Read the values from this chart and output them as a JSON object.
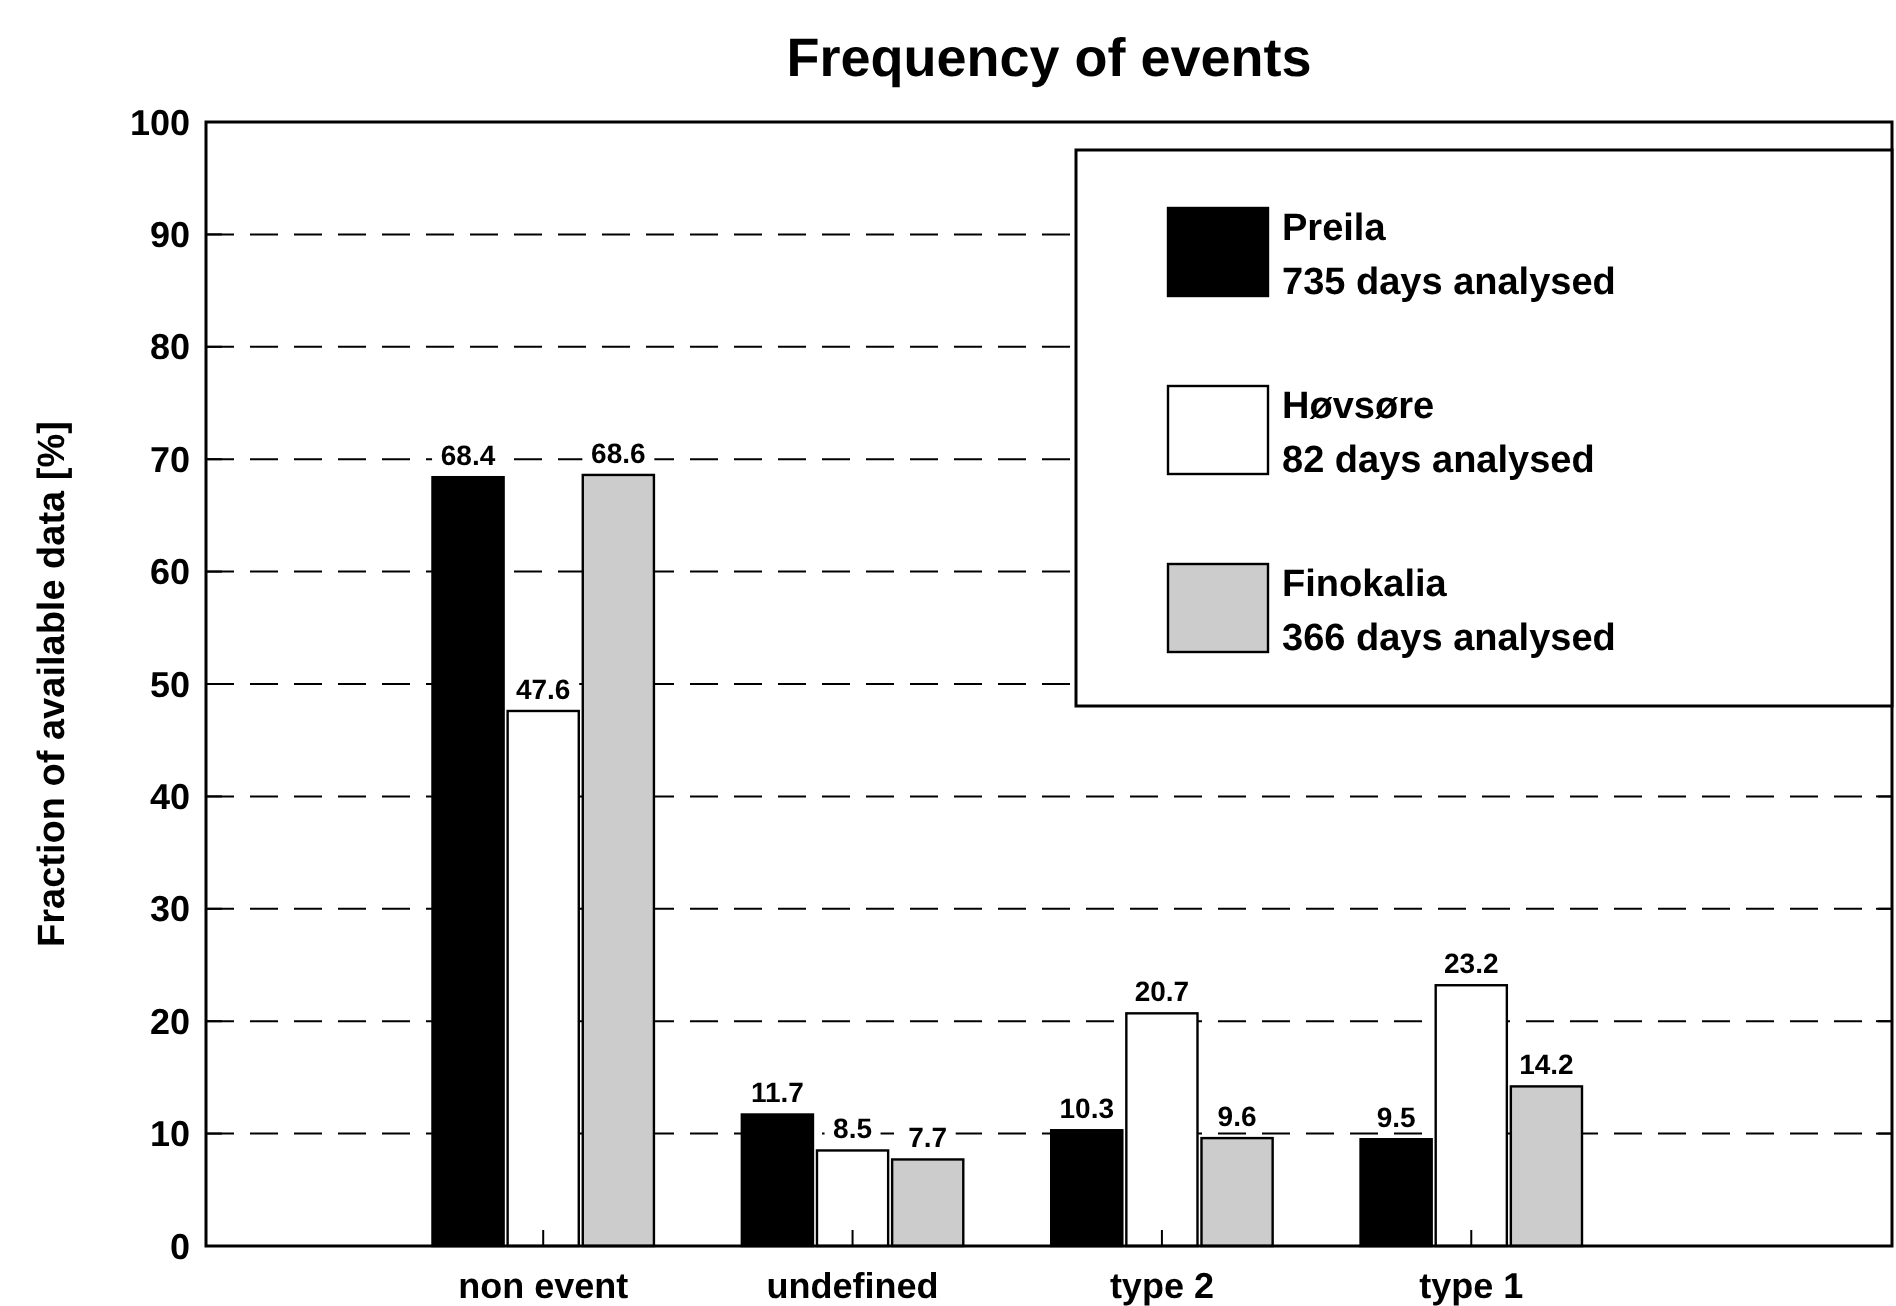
{
  "chart_data": {
    "type": "bar",
    "title": "Frequency of events",
    "ylabel": "Fraction of available data [%]",
    "categories": [
      "non event",
      "undefined",
      "type 2",
      "type 1"
    ],
    "series": [
      {
        "name": "Preila\n735 days analysed",
        "color": "#000000",
        "values": [
          68.4,
          11.7,
          10.3,
          9.5
        ]
      },
      {
        "name": "Høvsøre\n82 days analysed",
        "color": "#ffffff",
        "values": [
          47.6,
          8.5,
          20.7,
          23.2
        ]
      },
      {
        "name": "Finokalia\n366 days analysed",
        "color": "#cccccc",
        "values": [
          68.6,
          7.7,
          9.6,
          14.2
        ]
      }
    ],
    "ylim": [
      0,
      100
    ],
    "yticks": [
      0,
      10,
      20,
      30,
      40,
      50,
      60,
      70,
      80,
      90,
      100
    ],
    "grid": "y",
    "legend": "top right",
    "data_labels": true
  }
}
